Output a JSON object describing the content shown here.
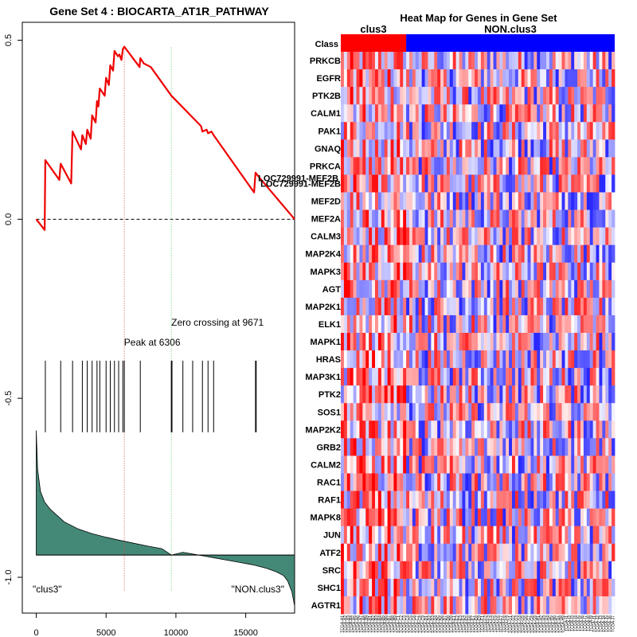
{
  "chart_data": [
    {
      "type": "line",
      "title": "Gene Set  4 : BIOCARTA_AT1R_PATHWAY",
      "xlim": [
        -1000,
        18500
      ],
      "ylim": [
        -1.1,
        0.55
      ],
      "x_ticks": [
        0,
        5000,
        10000,
        15000
      ],
      "x_tick_labels": [
        "0",
        "5000",
        "10000",
        "15000"
      ],
      "y_ticks": [
        0.5,
        0.0,
        -0.5,
        -1.0
      ],
      "y_tick_labels": [
        "0.5",
        "0.0",
        "-0.5",
        "-1.0"
      ],
      "running_enrichment_score": [
        [
          0,
          0
        ],
        [
          600,
          -0.03
        ],
        [
          650,
          0.165
        ],
        [
          1650,
          0.11
        ],
        [
          1750,
          0.155
        ],
        [
          2500,
          0.1
        ],
        [
          2600,
          0.245
        ],
        [
          3200,
          0.195
        ],
        [
          3300,
          0.235
        ],
        [
          3550,
          0.21
        ],
        [
          3650,
          0.25
        ],
        [
          3900,
          0.225
        ],
        [
          4000,
          0.29
        ],
        [
          4250,
          0.27
        ],
        [
          4350,
          0.33
        ],
        [
          4450,
          0.315
        ],
        [
          4550,
          0.365
        ],
        [
          4900,
          0.345
        ],
        [
          5000,
          0.395
        ],
        [
          5200,
          0.375
        ],
        [
          5300,
          0.43
        ],
        [
          5500,
          0.415
        ],
        [
          5600,
          0.47
        ],
        [
          5850,
          0.455
        ],
        [
          5950,
          0.46
        ],
        [
          6100,
          0.445
        ],
        [
          6200,
          0.475
        ],
        [
          6306,
          0.482
        ],
        [
          7400,
          0.425
        ],
        [
          7450,
          0.45
        ],
        [
          7700,
          0.435
        ],
        [
          8200,
          0.425
        ],
        [
          9671,
          0.345
        ],
        [
          11800,
          0.26
        ],
        [
          11900,
          0.245
        ],
        [
          12200,
          0.25
        ],
        [
          12300,
          0.24
        ],
        [
          12550,
          0.245
        ],
        [
          12700,
          0.235
        ],
        [
          15600,
          0.075
        ],
        [
          15700,
          0.13
        ],
        [
          16000,
          0.115
        ],
        [
          18500,
          0
        ]
      ],
      "baseline": 0,
      "hit_positions": [
        650,
        1750,
        2600,
        3300,
        3650,
        4000,
        4350,
        4550,
        5000,
        5300,
        5600,
        5900,
        6200,
        6306,
        7450,
        9671,
        9720,
        10500,
        11200,
        11900,
        12300,
        12700,
        15700,
        15750
      ],
      "hit_band": [
        -0.395,
        -0.595
      ],
      "ranked_metric_curve": {
        "x": [
          0,
          100,
          300,
          600,
          1000,
          2000,
          3000,
          4000,
          5000,
          6000,
          7000,
          8000,
          9000,
          9671,
          10500,
          11500,
          12500,
          13500,
          14500,
          15500,
          16500,
          17200,
          17700,
          18000,
          18300,
          18500
        ],
        "y": [
          -0.59,
          -0.7,
          -0.76,
          -0.79,
          -0.81,
          -0.845,
          -0.865,
          -0.878,
          -0.888,
          -0.897,
          -0.905,
          -0.913,
          -0.92,
          -0.938,
          -0.93,
          -0.937,
          -0.944,
          -0.951,
          -0.958,
          -0.965,
          -0.975,
          -0.985,
          -0.995,
          -1.01,
          -1.04,
          -1.08
        ],
        "baseline": -0.938,
        "fill_color": "#448877"
      },
      "peak": {
        "x": 6306,
        "label": "Peak at 6306",
        "color": "#dd4444"
      },
      "zero_crossing": {
        "x": 9671,
        "label": "Zero crossing at 9671",
        "color": "#55cc55"
      },
      "gene_label": {
        "text": "LOC729991-MEF2B",
        "x": 16000,
        "y": 0.115
      },
      "left_class_label": "\"clus3\"",
      "right_class_label": "\"NON.clus3\"",
      "line_color": "#ee0000"
    },
    {
      "type": "heatmap",
      "title": "Heat Map for Genes in Gene Set",
      "class_row_label": "Class",
      "groups": [
        {
          "name": "clus3",
          "columns": 21,
          "color": "#ff0000"
        },
        {
          "name": "NON.clus3",
          "columns": 67,
          "color": "#0000ff"
        }
      ],
      "genes": [
        "PRKCB",
        "EGFR",
        "PTK2B",
        "CALM1",
        "PAK1",
        "GNAQ",
        "PRKCA",
        "LOC729991-MEF2B",
        "MEF2D",
        "MEF2A",
        "CALM3",
        "MAP2K4",
        "MAPK3",
        "AGT",
        "MAP2K1",
        "ELK1",
        "MAPK1",
        "HRAS",
        "MAP3K1",
        "PTK2",
        "SOS1",
        "MAP2K2",
        "GRB2",
        "CALM2",
        "RAC1",
        "RAF1",
        "MAPK8",
        "JUN",
        "ATF2",
        "SRC",
        "SHC1",
        "AGTR1"
      ],
      "color_low": "#0000ff",
      "color_mid": "#ffffff",
      "color_high": "#ff0000",
      "sample_labels": [
        "TCGA-A1",
        "TCGA-A2",
        "TCGA-A3",
        "TCGA-A4",
        "TCGA-A5",
        "TCGA-A6",
        "TCGA-A7",
        "TCGA-A8",
        "TCGA-A9",
        "TCGA-B1",
        "TCGA-B2",
        "TCGA-B3",
        "TCGA-B4",
        "TCGA-B5",
        "TCGA-B6",
        "TCGA-B7",
        "TCGA-B8",
        "TCGA-B9",
        "TCGA-C1",
        "TCGA-C2",
        "TCGA-C3",
        "TCGA-C4",
        "TCGA-C5",
        "TCGA-C6",
        "TCGA-C7",
        "TCGA-C8",
        "TCGA-C9",
        "TCGA-D1",
        "TCGA-D2",
        "TCGA-D3",
        "TCGA-D4",
        "TCGA-D5",
        "TCGA-D6",
        "TCGA-D7",
        "TCGA-D8",
        "TCGA-D9",
        "TCGA-E1",
        "TCGA-E2",
        "TCGA-E3",
        "TCGA-E4",
        "TCGA-E5",
        "TCGA-E6",
        "TCGA-E7",
        "TCGA-E8",
        "TCGA-E9",
        "TCGA-F1",
        "TCGA-F2",
        "TCGA-F3",
        "TCGA-F4",
        "TCGA-F5",
        "TCGA-F6",
        "TCGA-F7",
        "TCGA-F8",
        "TCGA-F9",
        "TCGA-G1",
        "TCGA-G2",
        "TCGA-G3",
        "TCGA-G4",
        "TCGA-G5",
        "TCGA-G6",
        "TCGA-G7",
        "TCGA-G8",
        "TCGA-G9",
        "TCGA-H1",
        "TCGA-H2",
        "TCGA-H3",
        "TCGA-H4",
        "TCGA-H5",
        "TCGA-H6",
        "TCGA-H7",
        "TCGA-H8",
        "TCGA-H9",
        "TCGA-I1",
        "TCGA-I2",
        "TCGA-I3",
        "TCGA-I4",
        "TCGA-I5",
        "TCGA-I6",
        "TCGA-I7",
        "TCGA-I8",
        "TCGA-I9",
        "TCGA-J1",
        "TCGA-J2",
        "TCGA-J3",
        "TCGA-J4",
        "TCGA-J5",
        "TCGA-J6",
        "TCGA-J7"
      ]
    }
  ]
}
